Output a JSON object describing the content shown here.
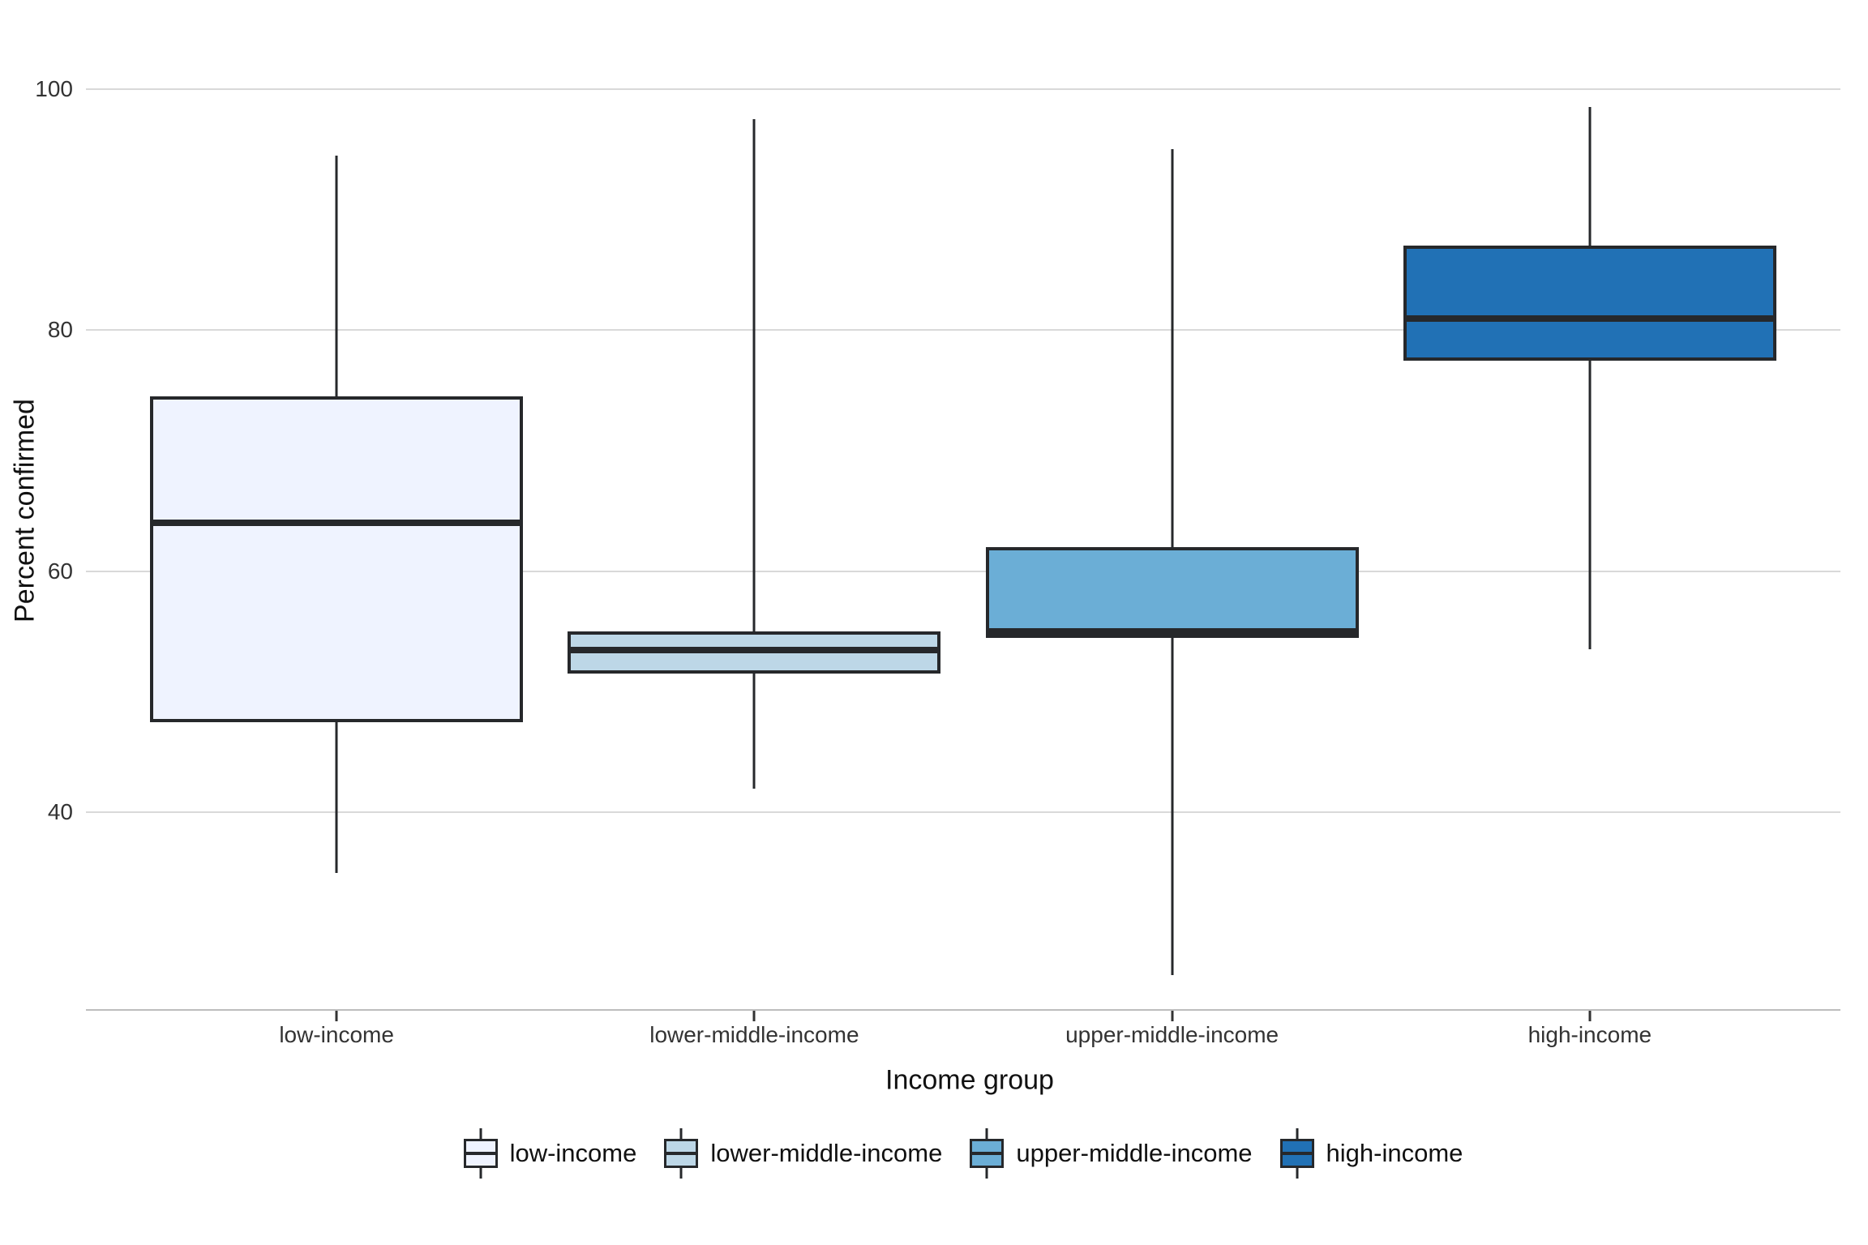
{
  "y_axis": {
    "title": "Percent confirmed",
    "ticks": [
      "100",
      "80",
      "60",
      "40"
    ],
    "tick_values": [
      100,
      80,
      60,
      40
    ]
  },
  "x_axis": {
    "title": "Income group"
  },
  "chart_data": {
    "type": "boxplot",
    "title": "",
    "xlabel": "Income group",
    "ylabel": "Percent confirmed",
    "ylim": [
      23,
      106
    ],
    "grid": "horizontal-major-only",
    "legend_position": "bottom",
    "categories": [
      "low-income",
      "lower-middle-income",
      "upper-middle-income",
      "high-income"
    ],
    "series": [
      {
        "name": "low-income",
        "fill": "#eff3ff",
        "min": 35,
        "q1": 47.5,
        "median": 64,
        "q3": 74.5,
        "max": 94.5
      },
      {
        "name": "lower-middle-income",
        "fill": "#bdd7e7",
        "min": 42,
        "q1": 51.5,
        "median": 53.5,
        "q3": 55,
        "max": 97.5
      },
      {
        "name": "upper-middle-income",
        "fill": "#6baed6",
        "min": 26.5,
        "q1": 54.5,
        "median": 55,
        "q3": 62,
        "max": 95
      },
      {
        "name": "high-income",
        "fill": "#2171b5",
        "min": 53.5,
        "q1": 77.5,
        "median": 81,
        "q3": 87,
        "max": 98.5
      }
    ]
  },
  "legend": {
    "items": [
      {
        "label": "low-income",
        "fill": "#eff3ff"
      },
      {
        "label": "lower-middle-income",
        "fill": "#bdd7e7"
      },
      {
        "label": "upper-middle-income",
        "fill": "#6baed6"
      },
      {
        "label": "high-income",
        "fill": "#2171b5"
      }
    ]
  },
  "colors": {
    "box_stroke": "#26282b",
    "gridline": "#d9d9d9",
    "axis_line": "#bdbdbd",
    "tick_text": "#333333",
    "title_text": "#111111",
    "background": "#ffffff"
  }
}
